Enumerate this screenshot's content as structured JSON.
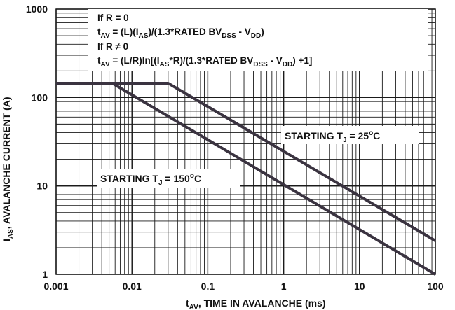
{
  "chart_data": {
    "type": "line",
    "title": "",
    "xlabel": {
      "main": "t",
      "sub": "AV",
      "rest": ", TIME IN AVALANCHE (ms)"
    },
    "ylabel": {
      "main": "I",
      "sub": "AS",
      "rest": ", AVALANCHE CURRENT (A)"
    },
    "x_scale": "log",
    "y_scale": "log",
    "xlim": [
      0.001,
      100
    ],
    "ylim": [
      1,
      1000
    ],
    "xticks": [
      "0.001",
      "0.01",
      "0.1",
      "1",
      "10",
      "100"
    ],
    "yticks": [
      "1",
      "10",
      "100",
      "1000"
    ],
    "grid": true,
    "annotation": {
      "line1": "If R = 0",
      "line2": {
        "t": "t",
        "t_sub": "AV",
        "a": " = (L)(I",
        "a_sub": "AS",
        "b": ")/(1.3*RATED BV",
        "b_sub": "DSS",
        "c": " - V",
        "c_sub": "DD",
        "d": ")"
      },
      "line3": "If R ≠ 0",
      "line4": {
        "t": "t",
        "t_sub": "AV",
        "a": " = (L/R)ln[(I",
        "a_sub": "AS",
        "b": "*R)/(1.3*RATED BV",
        "b_sub": "DSS",
        "c": " - V",
        "c_sub": "DD",
        "d": ") +1]"
      }
    },
    "series": [
      {
        "label": {
          "pre": "STARTING T",
          "sub": "J",
          "mid": " = 25",
          "sup": "o",
          "post": "C"
        },
        "x": [
          0.001,
          0.03,
          100
        ],
        "y": [
          145,
          145,
          2.4
        ],
        "color": "#3a3340"
      },
      {
        "label": {
          "pre": "STARTING T",
          "sub": "J",
          "mid": " = 150",
          "sup": "o",
          "post": "C"
        },
        "x": [
          0.001,
          0.0055,
          100
        ],
        "y": [
          145,
          145,
          1.0
        ],
        "color": "#3a3340"
      }
    ]
  }
}
